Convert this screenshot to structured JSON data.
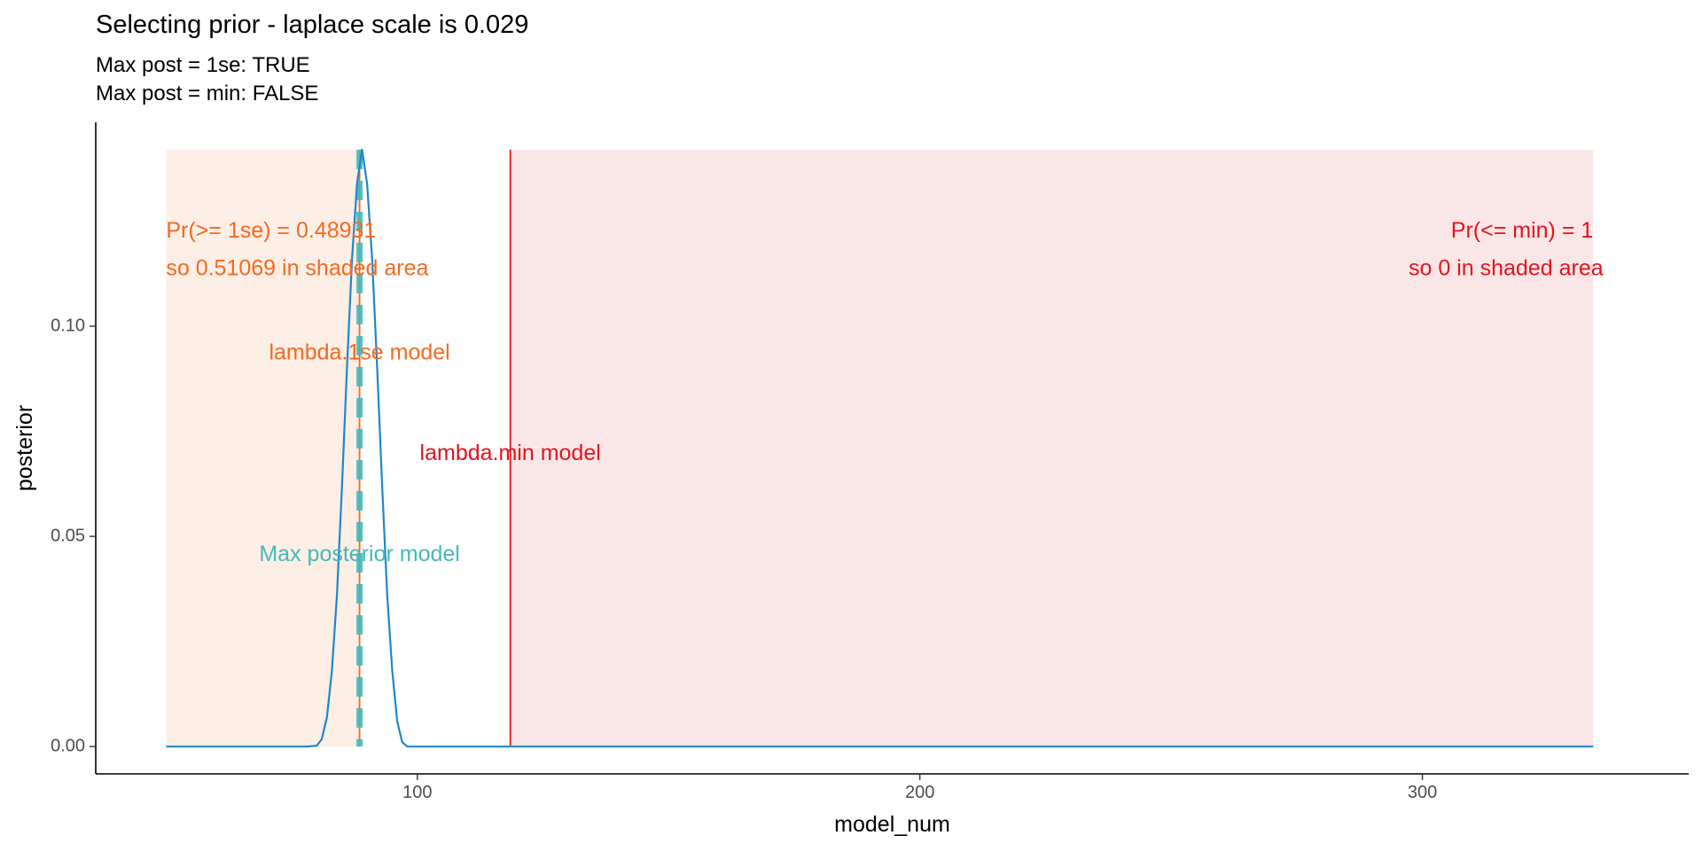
{
  "chart_data": {
    "type": "line",
    "title": "Selecting prior - laplace scale is 0.029",
    "subtitle": [
      "Max post = 1se: TRUE",
      "Max post = min: FALSE"
    ],
    "xlabel": "model_num",
    "ylabel": "posterior",
    "xlim": [
      36,
      353
    ],
    "ylim": [
      -0.0065,
      0.1485
    ],
    "x_ticks": [
      100,
      200,
      300
    ],
    "x_tick_labels": [
      "100",
      "200",
      "300"
    ],
    "y_ticks": [
      0.0,
      0.05,
      0.1
    ],
    "y_tick_labels": [
      "0.00",
      "0.05",
      "0.10"
    ],
    "grid": false,
    "series": [
      {
        "color": "#1f87c9",
        "x": [
          50,
          60,
          70,
          78,
          80,
          81,
          82,
          83,
          84,
          85,
          86,
          87,
          88,
          89,
          90,
          91,
          92,
          93,
          94,
          95,
          96,
          97,
          98,
          100,
          150,
          200,
          250,
          300,
          334
        ],
        "y": [
          0,
          0,
          0,
          0,
          0.0002,
          0.0018,
          0.007,
          0.018,
          0.036,
          0.062,
          0.09,
          0.116,
          0.134,
          0.142,
          0.134,
          0.116,
          0.09,
          0.062,
          0.036,
          0.018,
          0.006,
          0.001,
          0,
          0,
          0,
          0,
          0,
          0,
          0
        ]
      }
    ],
    "shaded_regions": [
      {
        "x_from": 50,
        "x_to": 88.5,
        "color": "#fdeee6"
      },
      {
        "x_from": 118.5,
        "x_to": 334,
        "color": "#fbe6e7"
      }
    ],
    "vertical_lines": [
      {
        "name": "lambda.1se model",
        "x": 88.5,
        "color": "#f26a21",
        "style": "solid"
      },
      {
        "name": "Max posterior model",
        "x": 88.5,
        "color": "#46b8b8",
        "style": "dashed"
      },
      {
        "name": "lambda.min model",
        "x": 118.5,
        "color": "#e3141e",
        "style": "solid"
      }
    ],
    "annotations": [
      {
        "text": "Pr(>= 1se) =  0.48931",
        "x": 50,
        "y": 0.1225,
        "anchor": "start",
        "color": "#f26a21"
      },
      {
        "text": "so 0.51069 in shaded area",
        "x": 50,
        "y": 0.1135,
        "anchor": "start",
        "color": "#f26a21"
      },
      {
        "text": "lambda.1se model",
        "x": 88.5,
        "y": 0.0935,
        "anchor": "middle",
        "color": "#f26a21"
      },
      {
        "text": "lambda.min model",
        "x": 118.5,
        "y": 0.0695,
        "anchor": "middle",
        "color": "#e3141e"
      },
      {
        "text": "Max posterior model",
        "x": 88.5,
        "y": 0.0455,
        "anchor": "middle",
        "color": "#46b8b8"
      },
      {
        "text": "Pr(<= min) =  1",
        "x": 334,
        "y": 0.1225,
        "anchor": "end",
        "color": "#e3141e"
      },
      {
        "text": "so 0 in shaded area",
        "x": 336,
        "y": 0.1135,
        "anchor": "end",
        "color": "#e3141e"
      }
    ]
  }
}
